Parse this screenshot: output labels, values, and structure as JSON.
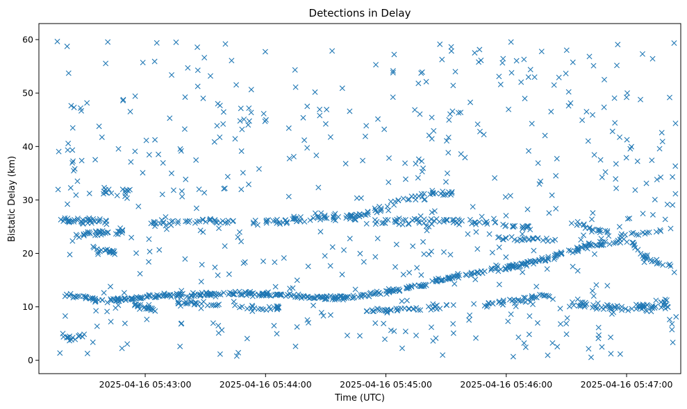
{
  "chart_data": {
    "type": "scatter",
    "title": "Detections in Delay",
    "xlabel": "Time (UTC)",
    "ylabel": "Bistatic Delay (km)",
    "marker": "x",
    "series_color": "#1f77b4",
    "grid": false,
    "legend": "none",
    "xlim_seconds": [
      7,
      327
    ],
    "ylim": [
      -2.5,
      63
    ],
    "x_ticks": [
      {
        "label": "2025-04-16 05:43:00",
        "value_s": 60
      },
      {
        "label": "2025-04-16 05:44:00",
        "value_s": 120
      },
      {
        "label": "2025-04-16 05:45:00",
        "value_s": 180
      },
      {
        "label": "2025-04-16 05:46:00",
        "value_s": 240
      },
      {
        "label": "2025-04-16 05:47:00",
        "value_s": 300
      }
    ],
    "y_ticks": [
      0,
      10,
      20,
      30,
      40,
      50,
      60
    ],
    "tracks": [
      {
        "points": [
          [
            19.9,
            12.3
          ],
          [
            26.2,
            11.9
          ],
          [
            34.0,
            11.5
          ],
          [
            41.4,
            11.2
          ],
          [
            53.0,
            11.5
          ],
          [
            63.0,
            12.0
          ],
          [
            82.0,
            12.2
          ],
          [
            98.0,
            12.4
          ],
          [
            110.0,
            12.5
          ],
          [
            124.0,
            12.3
          ],
          [
            138.0,
            12.0
          ],
          [
            148.0,
            11.8
          ],
          [
            155.0,
            11.7
          ],
          [
            163.0,
            11.9
          ],
          [
            172.0,
            12.3
          ],
          [
            184.0,
            13.0
          ],
          [
            197.0,
            14.0
          ],
          [
            214.0,
            15.6
          ],
          [
            231.0,
            16.7
          ],
          [
            249.0,
            18.0
          ],
          [
            260.0,
            19.0
          ],
          [
            274.0,
            20.6
          ],
          [
            283.0,
            21.7
          ]
        ],
        "count": 420,
        "jitter": 0.25
      },
      {
        "points": [
          [
            17.5,
            26.2
          ],
          [
            22.0,
            26.0
          ],
          [
            28.0,
            25.9
          ],
          [
            35.0,
            26.3
          ],
          [
            41.0,
            25.9
          ]
        ],
        "count": 38,
        "jitter": 0.35
      },
      {
        "points": [
          [
            26.0,
            23.5
          ],
          [
            35.0,
            23.7
          ],
          [
            43.0,
            23.9
          ],
          [
            49.0,
            24.0
          ]
        ],
        "count": 30,
        "jitter": 0.3
      },
      {
        "points": [
          [
            34.0,
            20.9
          ],
          [
            40.0,
            20.5
          ],
          [
            46.0,
            20.3
          ]
        ],
        "count": 18,
        "jitter": 0.3
      },
      {
        "points": [
          [
            62.0,
            25.6
          ],
          [
            74.0,
            25.8
          ],
          [
            87.0,
            26.1
          ],
          [
            100.0,
            25.9
          ],
          [
            110.0,
            25.9
          ],
          [
            120.0,
            25.8
          ],
          [
            131.0,
            26.0
          ]
        ],
        "count": 60,
        "jitter": 0.35
      },
      {
        "points": [
          [
            131.0,
            26.5
          ],
          [
            140.0,
            26.4
          ],
          [
            150.0,
            26.9
          ],
          [
            160.0,
            26.6
          ],
          [
            170.0,
            26.2
          ],
          [
            180.0,
            26.0
          ],
          [
            190.0,
            26.0
          ],
          [
            200.0,
            26.1
          ],
          [
            210.0,
            26.3
          ]
        ],
        "count": 70,
        "jitter": 0.45
      },
      {
        "points": [
          [
            160.0,
            26.5
          ],
          [
            170.0,
            27.5
          ],
          [
            180.0,
            28.8
          ],
          [
            190.0,
            30.0
          ],
          [
            198.0,
            30.9
          ],
          [
            207.0,
            31.2
          ],
          [
            215.0,
            31.3
          ]
        ],
        "count": 55,
        "jitter": 0.35
      },
      {
        "points": [
          [
            210.0,
            26.2
          ],
          [
            222.0,
            26.0
          ],
          [
            234.0,
            25.6
          ],
          [
            245.0,
            25.2
          ],
          [
            253.0,
            24.8
          ]
        ],
        "count": 40,
        "jitter": 0.3
      },
      {
        "points": [
          [
            235.0,
            23.0
          ],
          [
            243.0,
            22.8
          ],
          [
            255.0,
            22.7
          ],
          [
            265.0,
            22.6
          ]
        ],
        "count": 25,
        "jitter": 0.3
      },
      {
        "points": [
          [
            274.0,
            26.0
          ],
          [
            280.0,
            25.0
          ],
          [
            287.0,
            24.0
          ],
          [
            294.0,
            23.5
          ],
          [
            302.0,
            23.5
          ],
          [
            312.0,
            24.0
          ],
          [
            322.0,
            24.5
          ]
        ],
        "count": 35,
        "jitter": 0.3
      },
      {
        "points": [
          [
            284.0,
            21.5
          ],
          [
            292.0,
            21.8
          ],
          [
            298.0,
            22.5
          ],
          [
            303.0,
            22.2
          ],
          [
            308.0,
            19.5
          ],
          [
            314.0,
            18.3
          ],
          [
            322.0,
            18.0
          ]
        ],
        "count": 45,
        "jitter": 0.3
      },
      {
        "points": [
          [
            270.0,
            10.5
          ],
          [
            282.0,
            10.4
          ],
          [
            292.0,
            9.6
          ],
          [
            300.0,
            9.8
          ],
          [
            310.0,
            10.2
          ],
          [
            322.0,
            10.4
          ]
        ],
        "count": 55,
        "jitter": 0.45
      },
      {
        "points": [
          [
            76.0,
            10.8
          ],
          [
            90.0,
            10.4
          ],
          [
            104.0,
            10.0
          ],
          [
            118.0,
            9.8
          ],
          [
            128.0,
            9.7
          ]
        ],
        "count": 45,
        "jitter": 0.35
      },
      {
        "points": [
          [
            53.0,
            10.3
          ],
          [
            60.0,
            10.0
          ],
          [
            66.0,
            9.3
          ]
        ],
        "count": 22,
        "jitter": 0.35
      },
      {
        "points": [
          [
            170.0,
            9.2
          ],
          [
            182.0,
            9.4
          ],
          [
            195.0,
            9.7
          ],
          [
            205.0,
            10.0
          ],
          [
            215.0,
            10.3
          ]
        ],
        "count": 45,
        "jitter": 0.35
      },
      {
        "points": [
          [
            228.0,
            10.2
          ],
          [
            236.0,
            10.6
          ],
          [
            246.0,
            11.4
          ],
          [
            258.0,
            11.9
          ],
          [
            264.0,
            12.0
          ]
        ],
        "count": 40,
        "jitter": 0.4
      },
      {
        "points": [
          [
            19.0,
            4.0
          ],
          [
            24.0,
            4.2
          ],
          [
            30.0,
            4.7
          ]
        ],
        "count": 16,
        "jitter": 0.3
      },
      {
        "points": [
          [
            38.0,
            31.5
          ],
          [
            46.0,
            31.8
          ],
          [
            53.0,
            32.0
          ]
        ],
        "count": 14,
        "jitter": 0.4
      },
      {
        "points": [
          [
            305.0,
            10.2
          ],
          [
            312.0,
            9.9
          ],
          [
            322.0,
            11.0
          ]
        ],
        "count": 18,
        "jitter": 0.5
      }
    ],
    "noise": {
      "count": 520,
      "x_range_s": [
        16,
        325
      ],
      "y_range": [
        0.5,
        60
      ],
      "seed": 20250416
    }
  }
}
